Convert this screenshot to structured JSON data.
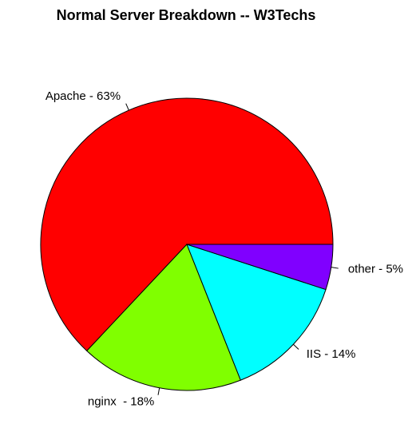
{
  "chart_data": {
    "type": "pie",
    "title": "Normal Server Breakdown -- W3Techs",
    "categories": [
      "Apache - 63%",
      "nginx  - 18%",
      "IIS - 14%",
      "other - 5%"
    ],
    "values": [
      63,
      18,
      14,
      5
    ],
    "colors": [
      "#ff0000",
      "#80ff00",
      "#00ffff",
      "#8000ff"
    ]
  }
}
